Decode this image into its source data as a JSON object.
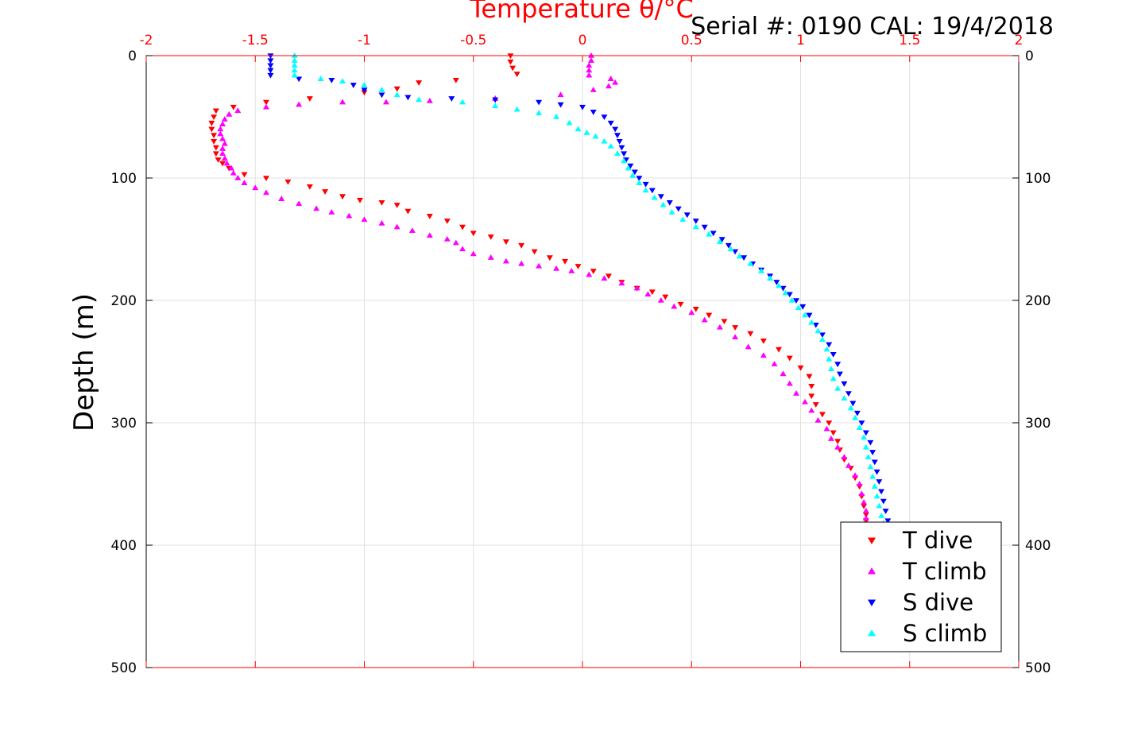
{
  "chart_data": {
    "type": "scatter",
    "title": "Serial #: 0190  CAL: 19/4/2018",
    "xlabel": "Temperature θ/°C",
    "ylabel": "Depth (m)",
    "xlim": [
      -2,
      2
    ],
    "ylim": [
      0,
      500
    ],
    "y_reversed": true,
    "x_ticks": [
      "-2",
      "-1.5",
      "-1",
      "-0.5",
      "0",
      "0.5",
      "1",
      "1.5",
      "2"
    ],
    "y_ticks": [
      "0",
      "100",
      "200",
      "300",
      "400",
      "500"
    ],
    "grid": true,
    "legend_position": "bottom-right",
    "colors": {
      "axis_top": "#ff0000",
      "grid": "#e0e0e0"
    },
    "series": [
      {
        "name": "T dive",
        "marker": "triangle-down",
        "color": "#ff0000",
        "points": [
          [
            -0.33,
            0
          ],
          [
            -0.33,
            5
          ],
          [
            -0.32,
            10
          ],
          [
            -0.3,
            15
          ],
          [
            -0.58,
            20
          ],
          [
            -0.75,
            22
          ],
          [
            -0.85,
            27
          ],
          [
            -1.0,
            30
          ],
          [
            -1.25,
            35
          ],
          [
            -1.45,
            38
          ],
          [
            -1.6,
            42
          ],
          [
            -1.68,
            45
          ],
          [
            -1.69,
            50
          ],
          [
            -1.7,
            55
          ],
          [
            -1.7,
            60
          ],
          [
            -1.69,
            65
          ],
          [
            -1.69,
            70
          ],
          [
            -1.68,
            75
          ],
          [
            -1.68,
            80
          ],
          [
            -1.67,
            85
          ],
          [
            -1.65,
            88
          ],
          [
            -1.62,
            92
          ],
          [
            -1.55,
            97
          ],
          [
            -1.45,
            100
          ],
          [
            -1.35,
            103
          ],
          [
            -1.25,
            107
          ],
          [
            -1.18,
            111
          ],
          [
            -1.1,
            115
          ],
          [
            -1.02,
            118
          ],
          [
            -0.92,
            120
          ],
          [
            -0.85,
            122
          ],
          [
            -0.8,
            127
          ],
          [
            -0.7,
            131
          ],
          [
            -0.62,
            135
          ],
          [
            -0.55,
            140
          ],
          [
            -0.5,
            145
          ],
          [
            -0.42,
            148
          ],
          [
            -0.35,
            152
          ],
          [
            -0.28,
            155
          ],
          [
            -0.22,
            160
          ],
          [
            -0.15,
            165
          ],
          [
            -0.08,
            168
          ],
          [
            -0.02,
            172
          ],
          [
            0.05,
            176
          ],
          [
            0.12,
            180
          ],
          [
            0.18,
            185
          ],
          [
            0.25,
            190
          ],
          [
            0.32,
            193
          ],
          [
            0.38,
            197
          ],
          [
            0.45,
            203
          ],
          [
            0.52,
            207
          ],
          [
            0.58,
            212
          ],
          [
            0.65,
            217
          ],
          [
            0.7,
            222
          ],
          [
            0.77,
            227
          ],
          [
            0.83,
            233
          ],
          [
            0.9,
            240
          ],
          [
            0.95,
            247
          ],
          [
            1.0,
            255
          ],
          [
            1.04,
            262
          ],
          [
            1.05,
            270
          ],
          [
            1.05,
            278
          ],
          [
            1.07,
            285
          ],
          [
            1.1,
            293
          ],
          [
            1.13,
            300
          ],
          [
            1.15,
            308
          ],
          [
            1.17,
            315
          ],
          [
            1.18,
            322
          ],
          [
            1.2,
            330
          ],
          [
            1.23,
            337
          ],
          [
            1.25,
            345
          ],
          [
            1.27,
            352
          ],
          [
            1.28,
            360
          ],
          [
            1.29,
            368
          ],
          [
            1.3,
            375
          ],
          [
            1.3,
            380
          ]
        ]
      },
      {
        "name": "T climb",
        "marker": "triangle-up",
        "color": "#ff00ff",
        "points": [
          [
            0.04,
            0
          ],
          [
            0.04,
            4
          ],
          [
            0.03,
            8
          ],
          [
            0.03,
            12
          ],
          [
            0.03,
            16
          ],
          [
            0.13,
            19
          ],
          [
            0.15,
            22
          ],
          [
            0.12,
            25
          ],
          [
            0.05,
            28
          ],
          [
            -0.1,
            32
          ],
          [
            -0.4,
            35
          ],
          [
            -0.7,
            37
          ],
          [
            -0.9,
            38
          ],
          [
            -1.1,
            38
          ],
          [
            -1.3,
            40
          ],
          [
            -1.45,
            42
          ],
          [
            -1.58,
            45
          ],
          [
            -1.62,
            48
          ],
          [
            -1.64,
            52
          ],
          [
            -1.65,
            56
          ],
          [
            -1.66,
            60
          ],
          [
            -1.66,
            64
          ],
          [
            -1.65,
            68
          ],
          [
            -1.64,
            72
          ],
          [
            -1.65,
            76
          ],
          [
            -1.65,
            80
          ],
          [
            -1.64,
            84
          ],
          [
            -1.63,
            88
          ],
          [
            -1.61,
            92
          ],
          [
            -1.6,
            96
          ],
          [
            -1.58,
            100
          ],
          [
            -1.55,
            104
          ],
          [
            -1.5,
            108
          ],
          [
            -1.45,
            112
          ],
          [
            -1.38,
            117
          ],
          [
            -1.3,
            121
          ],
          [
            -1.22,
            125
          ],
          [
            -1.15,
            128
          ],
          [
            -1.07,
            131
          ],
          [
            -1.0,
            134
          ],
          [
            -0.92,
            137
          ],
          [
            -0.85,
            140
          ],
          [
            -0.78,
            143
          ],
          [
            -0.7,
            147
          ],
          [
            -0.62,
            150
          ],
          [
            -0.58,
            153
          ],
          [
            -0.55,
            158
          ],
          [
            -0.5,
            162
          ],
          [
            -0.42,
            165
          ],
          [
            -0.35,
            168
          ],
          [
            -0.28,
            170
          ],
          [
            -0.2,
            172
          ],
          [
            -0.12,
            174
          ],
          [
            -0.05,
            176
          ],
          [
            0.03,
            179
          ],
          [
            0.1,
            182
          ],
          [
            0.18,
            186
          ],
          [
            0.25,
            190
          ],
          [
            0.3,
            195
          ],
          [
            0.36,
            200
          ],
          [
            0.42,
            205
          ],
          [
            0.5,
            210
          ],
          [
            0.56,
            216
          ],
          [
            0.63,
            222
          ],
          [
            0.7,
            230
          ],
          [
            0.76,
            238
          ],
          [
            0.83,
            245
          ],
          [
            0.88,
            252
          ],
          [
            0.92,
            260
          ],
          [
            0.95,
            268
          ],
          [
            0.98,
            276
          ],
          [
            1.02,
            283
          ],
          [
            1.05,
            290
          ],
          [
            1.08,
            298
          ],
          [
            1.12,
            305
          ],
          [
            1.14,
            313
          ],
          [
            1.17,
            320
          ],
          [
            1.2,
            328
          ],
          [
            1.22,
            335
          ],
          [
            1.25,
            343
          ],
          [
            1.27,
            350
          ],
          [
            1.28,
            358
          ],
          [
            1.29,
            365
          ],
          [
            1.3,
            372
          ],
          [
            1.3,
            378
          ]
        ]
      },
      {
        "name": "S dive",
        "marker": "triangle-down",
        "color": "#0000ff",
        "points": [
          [
            -1.43,
            0
          ],
          [
            -1.43,
            4
          ],
          [
            -1.43,
            8
          ],
          [
            -1.43,
            12
          ],
          [
            -1.43,
            16
          ],
          [
            -1.3,
            19
          ],
          [
            -1.15,
            20
          ],
          [
            -1.05,
            24
          ],
          [
            -1.0,
            28
          ],
          [
            -0.92,
            32
          ],
          [
            -0.8,
            34
          ],
          [
            -0.6,
            35
          ],
          [
            -0.4,
            36
          ],
          [
            -0.2,
            38
          ],
          [
            -0.1,
            40
          ],
          [
            0.0,
            42
          ],
          [
            0.05,
            46
          ],
          [
            0.1,
            50
          ],
          [
            0.13,
            55
          ],
          [
            0.15,
            60
          ],
          [
            0.16,
            65
          ],
          [
            0.17,
            70
          ],
          [
            0.18,
            75
          ],
          [
            0.19,
            80
          ],
          [
            0.2,
            85
          ],
          [
            0.22,
            90
          ],
          [
            0.24,
            95
          ],
          [
            0.26,
            100
          ],
          [
            0.29,
            105
          ],
          [
            0.32,
            110
          ],
          [
            0.36,
            115
          ],
          [
            0.4,
            120
          ],
          [
            0.44,
            125
          ],
          [
            0.48,
            130
          ],
          [
            0.52,
            135
          ],
          [
            0.56,
            140
          ],
          [
            0.6,
            145
          ],
          [
            0.64,
            150
          ],
          [
            0.67,
            155
          ],
          [
            0.7,
            160
          ],
          [
            0.74,
            165
          ],
          [
            0.78,
            170
          ],
          [
            0.82,
            175
          ],
          [
            0.86,
            180
          ],
          [
            0.89,
            185
          ],
          [
            0.92,
            190
          ],
          [
            0.95,
            195
          ],
          [
            0.98,
            200
          ],
          [
            1.01,
            205
          ],
          [
            1.04,
            212
          ],
          [
            1.07,
            220
          ],
          [
            1.1,
            228
          ],
          [
            1.13,
            236
          ],
          [
            1.15,
            244
          ],
          [
            1.17,
            252
          ],
          [
            1.18,
            260
          ],
          [
            1.2,
            268
          ],
          [
            1.22,
            276
          ],
          [
            1.24,
            284
          ],
          [
            1.26,
            292
          ],
          [
            1.28,
            300
          ],
          [
            1.3,
            308
          ],
          [
            1.32,
            316
          ],
          [
            1.33,
            324
          ],
          [
            1.34,
            332
          ],
          [
            1.35,
            340
          ],
          [
            1.36,
            348
          ],
          [
            1.37,
            356
          ],
          [
            1.38,
            364
          ],
          [
            1.39,
            372
          ],
          [
            1.4,
            380
          ]
        ]
      },
      {
        "name": "S climb",
        "marker": "triangle-up",
        "color": "#00ffff",
        "points": [
          [
            -1.32,
            0
          ],
          [
            -1.32,
            4
          ],
          [
            -1.32,
            8
          ],
          [
            -1.32,
            12
          ],
          [
            -1.32,
            16
          ],
          [
            -1.2,
            19
          ],
          [
            -1.1,
            21
          ],
          [
            -1.0,
            24
          ],
          [
            -0.92,
            28
          ],
          [
            -0.85,
            32
          ],
          [
            -0.75,
            36
          ],
          [
            -0.55,
            38
          ],
          [
            -0.4,
            41
          ],
          [
            -0.3,
            44
          ],
          [
            -0.2,
            47
          ],
          [
            -0.12,
            50
          ],
          [
            -0.06,
            55
          ],
          [
            -0.02,
            60
          ],
          [
            0.02,
            63
          ],
          [
            0.06,
            66
          ],
          [
            0.1,
            70
          ],
          [
            0.13,
            74
          ],
          [
            0.16,
            80
          ],
          [
            0.19,
            86
          ],
          [
            0.21,
            92
          ],
          [
            0.23,
            98
          ],
          [
            0.26,
            104
          ],
          [
            0.29,
            110
          ],
          [
            0.33,
            116
          ],
          [
            0.37,
            122
          ],
          [
            0.41,
            128
          ],
          [
            0.46,
            134
          ],
          [
            0.52,
            140
          ],
          [
            0.58,
            146
          ],
          [
            0.63,
            152
          ],
          [
            0.68,
            158
          ],
          [
            0.72,
            164
          ],
          [
            0.77,
            170
          ],
          [
            0.82,
            176
          ],
          [
            0.86,
            182
          ],
          [
            0.9,
            188
          ],
          [
            0.93,
            194
          ],
          [
            0.96,
            200
          ],
          [
            0.99,
            206
          ],
          [
            1.02,
            212
          ],
          [
            1.05,
            218
          ],
          [
            1.08,
            225
          ],
          [
            1.1,
            232
          ],
          [
            1.12,
            240
          ],
          [
            1.13,
            248
          ],
          [
            1.14,
            256
          ],
          [
            1.15,
            264
          ],
          [
            1.17,
            272
          ],
          [
            1.2,
            280
          ],
          [
            1.23,
            288
          ],
          [
            1.25,
            296
          ],
          [
            1.27,
            304
          ],
          [
            1.29,
            312
          ],
          [
            1.3,
            320
          ],
          [
            1.31,
            328
          ],
          [
            1.32,
            336
          ],
          [
            1.33,
            344
          ],
          [
            1.34,
            352
          ],
          [
            1.35,
            360
          ],
          [
            1.36,
            368
          ],
          [
            1.37,
            376
          ],
          [
            1.38,
            382
          ]
        ]
      }
    ]
  }
}
